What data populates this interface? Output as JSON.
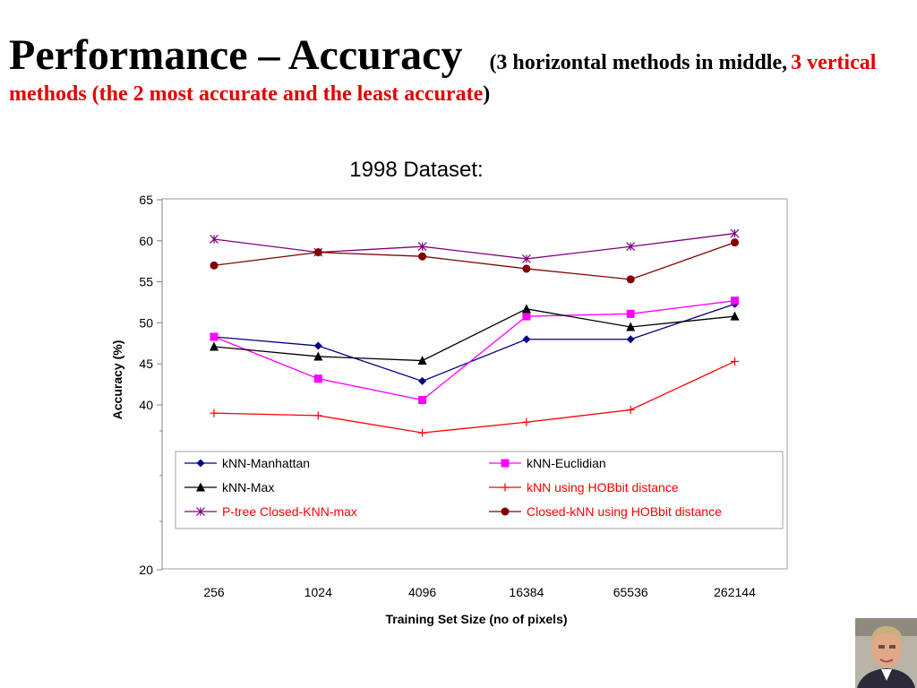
{
  "slide": {
    "title": "Performance – Accuracy",
    "subtitle_black_1": "(3 horizontal methods in middle,",
    "subtitle_red": "3 vertical methods (the 2 most accurate and the least accurate",
    "subtitle_black_2": ")"
  },
  "chart_data": {
    "type": "line",
    "title": "1998 Dataset:",
    "xlabel": "Training Set Size (no of pixels)",
    "ylabel": "Accuracy (%)",
    "categories": [
      "256",
      "1024",
      "4096",
      "16384",
      "65536",
      "262144"
    ],
    "yticks": [
      "20",
      "40",
      "45",
      "50",
      "55",
      "60",
      "65"
    ],
    "ylim": [
      20,
      65
    ],
    "grid": false,
    "legend_position": "inside-bottom",
    "series": [
      {
        "name": "kNN-Manhattan",
        "color": "#000080",
        "marker": "diamond",
        "text_color": "#000000",
        "values": [
          48.3,
          47.2,
          42.9,
          48.0,
          48.0,
          52.3
        ]
      },
      {
        "name": "kNN-Euclidian",
        "color": "#ff00ff",
        "marker": "square",
        "text_color": "#000000",
        "values": [
          48.3,
          43.2,
          40.6,
          50.8,
          51.1,
          52.7
        ]
      },
      {
        "name": "kNN-Max",
        "color": "#000000",
        "marker": "triangle",
        "text_color": "#000000",
        "values": [
          47.1,
          45.9,
          45.4,
          51.7,
          49.5,
          50.8
        ]
      },
      {
        "name": " kNN using HOBbit distance",
        "color": "#ff0000",
        "marker": "plus",
        "text_color": "#ff0000",
        "values": [
          39.0,
          38.7,
          36.6,
          37.9,
          39.4,
          45.3
        ]
      },
      {
        "name": " P-tree Closed-KNN-max",
        "color": "#800080",
        "marker": "star",
        "text_color": "#ff0000",
        "values": [
          60.2,
          58.6,
          59.3,
          57.8,
          59.3,
          60.9
        ]
      },
      {
        "name": "Closed-kNN using HOBbit distance",
        "color": "#800000",
        "marker": "circle",
        "text_color": "#ff0000",
        "values": [
          57.0,
          58.6,
          58.1,
          56.6,
          55.3,
          59.8
        ]
      }
    ]
  },
  "photo": {
    "icon": "portrait-photo"
  }
}
